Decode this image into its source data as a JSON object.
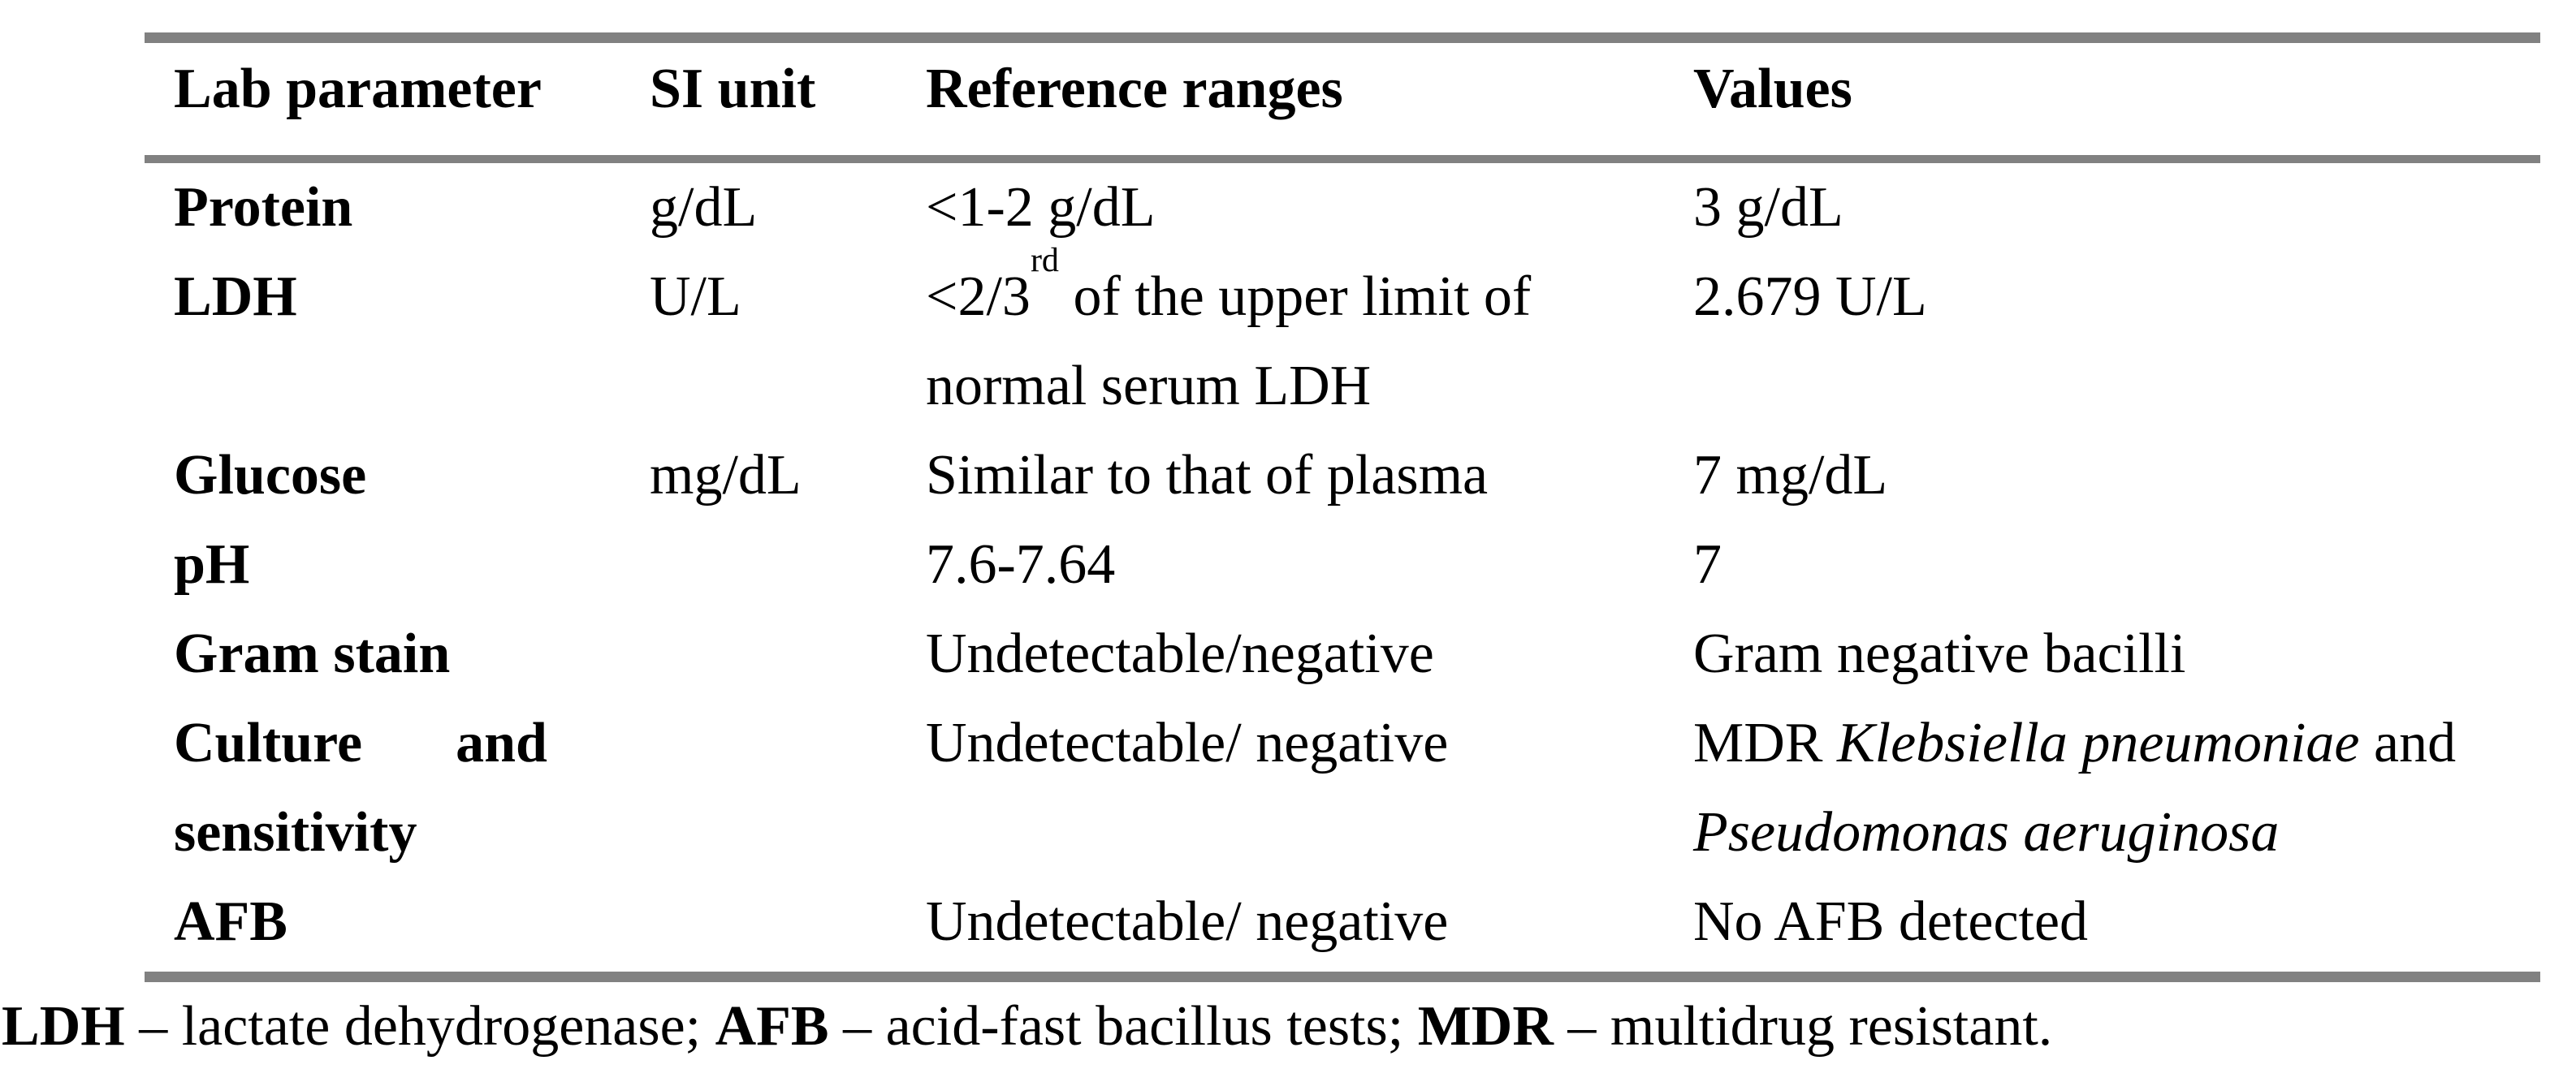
{
  "table": {
    "border_color": "#818181",
    "header": {
      "col1": "Lab parameter",
      "col2": "SI unit",
      "col3": "Reference ranges",
      "col4": "Values"
    },
    "rows": {
      "protein": {
        "parameter": "Protein",
        "si_unit": "g/dL",
        "reference": "<1-2 g/dL",
        "value": "3 g/dL"
      },
      "ldh": {
        "parameter": "LDH",
        "si_unit": "U/L",
        "reference_line1_main": "<2/3",
        "reference_line1_sup": "rd",
        "reference_line1_rest": " of the upper limit of",
        "reference_line2": "normal serum LDH",
        "value": "2.679 U/L"
      },
      "glucose": {
        "parameter": "Glucose",
        "si_unit": "mg/dL",
        "reference": "Similar to that of plasma",
        "value": "7 mg/dL"
      },
      "ph": {
        "parameter": "pH",
        "si_unit": "",
        "reference": "7.6-7.64",
        "value": "7"
      },
      "gram_stain": {
        "parameter": "Gram stain",
        "si_unit": "",
        "reference": "Undetectable/negative",
        "value": "Gram negative bacilli"
      },
      "culture": {
        "parameter_word1": "Culture",
        "parameter_word2": "and",
        "parameter_line2": "sensitivity",
        "si_unit": "",
        "reference": "Undetectable/ negative",
        "value_prefix": "MDR ",
        "value_species1": "Klebsiella pneumoniae",
        "value_conjunction": " and",
        "value_species2": "Pseudomonas aeruginosa"
      },
      "afb": {
        "parameter": "AFB",
        "si_unit": "",
        "reference": "Undetectable/ negative",
        "value": "No AFB detected"
      }
    }
  },
  "footnote": {
    "abbr1": "LDH",
    "definition1": " – lactate dehydrogenase; ",
    "abbr2": "AFB",
    "definition2": " – acid-fast bacillus tests; ",
    "abbr3": "MDR",
    "definition3": " – multidrug resistant."
  }
}
